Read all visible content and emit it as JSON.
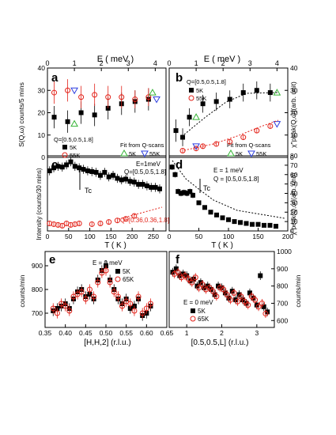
{
  "figure": {
    "top_axis_label": "E ( meV )",
    "panels_count": 6
  },
  "colors": {
    "black": "#000000",
    "red": "#e32219",
    "green": "#35b335",
    "blue": "#2d3fe0",
    "purple": "#6e2da8"
  },
  "chart_data": [
    {
      "id": "a",
      "type": "scatter",
      "letter": "a",
      "xlabel": "",
      "ylabel": "S(Q,ω) counts/5 mins",
      "top_xlabel": "E ( meV )",
      "xlim": [
        0,
        4.4
      ],
      "ylim": [
        0,
        40
      ],
      "xticks": [
        0,
        1,
        2,
        3,
        4
      ],
      "yticks": [
        0,
        10,
        20,
        30,
        40
      ],
      "annotations": [
        "Q=[0.5,0.5,1.8]",
        "Fit from Q-scans"
      ],
      "legend": [
        "5K",
        "55K",
        "5K",
        "55K"
      ],
      "series": [
        {
          "name": "5K",
          "marker": "square",
          "color": "#000000",
          "x": [
            0.25,
            0.75,
            1.25,
            1.75,
            2.25,
            2.75,
            3.25,
            3.75
          ],
          "y": [
            18,
            16,
            20,
            19,
            22,
            24,
            25,
            26
          ],
          "err": [
            5,
            5,
            5,
            5,
            5,
            5,
            5,
            5
          ]
        },
        {
          "name": "55K",
          "marker": "circle-open",
          "color": "#e32219",
          "x": [
            0.25,
            0.75,
            1.25,
            1.75,
            2.25,
            2.75,
            3.25,
            3.75
          ],
          "y": [
            29,
            30,
            27,
            28,
            27,
            27,
            26,
            27
          ],
          "err": [
            5,
            5,
            5,
            5,
            5,
            5,
            4,
            4
          ]
        },
        {
          "name": "5K",
          "marker": "triangle-up-open",
          "color": "#35b335",
          "x": [
            1.0,
            3.9
          ],
          "y": [
            15,
            29
          ],
          "err": [
            0,
            0
          ]
        },
        {
          "name": "55K",
          "marker": "triangle-down-open",
          "color": "#2d3fe0",
          "x": [
            1.0,
            4.05
          ],
          "y": [
            30,
            26
          ],
          "err": [
            0,
            0
          ]
        }
      ]
    },
    {
      "id": "b",
      "type": "scatter",
      "letter": "b",
      "xlabel": "",
      "ylabel": "χ''peak(Q,ω)(arb. unit)",
      "top_xlabel": "E ( meV )",
      "xlim": [
        0,
        4.4
      ],
      "ylim": [
        0,
        40
      ],
      "xticks": [
        0,
        1,
        2,
        3,
        4
      ],
      "yticks": [
        0,
        10,
        20,
        30,
        40
      ],
      "annotations": [
        "Q=[0.5,0.5,1.8]",
        "Fit from Q-scans"
      ],
      "legend": [
        "5K",
        "55K",
        "5K",
        "55K"
      ],
      "series": [
        {
          "name": "5K",
          "marker": "square",
          "color": "#000000",
          "x": [
            0.25,
            0.5,
            0.75,
            1.25,
            1.75,
            2.25,
            2.75,
            3.25,
            3.75
          ],
          "y": [
            12,
            9,
            18,
            24,
            25,
            26,
            29,
            30,
            29
          ],
          "err": [
            5,
            4,
            4,
            4,
            4,
            4,
            4,
            4,
            4
          ]
        },
        {
          "name": "55K",
          "marker": "circle-open",
          "color": "#e32219",
          "x": [
            0.5,
            1.0,
            1.25,
            1.75,
            2.25,
            2.75,
            3.25,
            3.75
          ],
          "y": [
            3,
            4,
            5,
            6,
            7,
            9,
            12,
            14
          ],
          "err": [
            1,
            1,
            1,
            1,
            1,
            1,
            1,
            1
          ]
        },
        {
          "name": "5K",
          "marker": "triangle-up-open",
          "color": "#35b335",
          "x": [
            1.0,
            4.0
          ],
          "y": [
            18,
            29
          ],
          "err": [
            0,
            0
          ]
        },
        {
          "name": "55K",
          "marker": "triangle-down-open",
          "color": "#2d3fe0",
          "x": [
            1.0,
            4.0
          ],
          "y": [
            5,
            15
          ],
          "err": [
            0,
            0
          ]
        }
      ]
    },
    {
      "id": "c",
      "type": "scatter",
      "letter": "c",
      "xlabel": "T ( K )",
      "ylabel": "Intensity (counts/30 mins)",
      "xlim": [
        0,
        280
      ],
      "ylim": [
        0,
        1
      ],
      "xticks": [
        0,
        50,
        100,
        150,
        200,
        250
      ],
      "yticks": [],
      "annotations": [
        "E=1meV",
        "Q=[0.5,0.5,1.8]",
        "Tc",
        "Q=[0.36,0.36,1.8]"
      ],
      "series": [
        {
          "name": "",
          "marker": "square",
          "color": "#000000",
          "x": [
            5,
            15,
            25,
            35,
            45,
            55,
            65,
            75,
            85,
            95,
            105,
            115,
            125,
            135,
            145,
            155,
            165,
            175,
            185,
            195,
            205,
            215,
            225,
            235,
            245,
            255,
            265
          ],
          "y": [
            0.8,
            0.84,
            0.86,
            0.85,
            0.88,
            0.92,
            0.86,
            0.84,
            0.82,
            0.8,
            0.79,
            0.78,
            0.74,
            0.78,
            0.72,
            0.74,
            0.7,
            0.68,
            0.69,
            0.66,
            0.65,
            0.62,
            0.62,
            0.6,
            0.58,
            0.58,
            0.56
          ],
          "err": [
            0.06,
            0.06,
            0.06,
            0.06,
            0.06,
            0.06,
            0.06,
            0.06,
            0.06,
            0.06,
            0.06,
            0.06,
            0.06,
            0.06,
            0.06,
            0.06,
            0.06,
            0.06,
            0.06,
            0.06,
            0.06,
            0.06,
            0.06,
            0.06,
            0.06,
            0.06,
            0.06
          ]
        },
        {
          "name": "Q=[0.36,0.36,1.8]",
          "marker": "circle-open",
          "color": "#e32219",
          "x": [
            5,
            15,
            25,
            35,
            45,
            55,
            65,
            75,
            105,
            125,
            145,
            165,
            185,
            205
          ],
          "y": [
            0.1,
            0.09,
            0.08,
            0.07,
            0.1,
            0.08,
            0.09,
            0.1,
            0.09,
            0.1,
            0.12,
            0.14,
            0.16,
            0.2
          ],
          "err": [
            0.03,
            0.03,
            0.03,
            0.03,
            0.03,
            0.03,
            0.03,
            0.03,
            0.03,
            0.03,
            0.03,
            0.03,
            0.03,
            0.03
          ]
        }
      ]
    },
    {
      "id": "d",
      "type": "scatter",
      "letter": "d",
      "xlabel": "T ( K )",
      "ylabel": "χ''peak(Q,ω)(arb. unit)",
      "xlim": [
        0,
        200
      ],
      "ylim": [
        0,
        80
      ],
      "xticks": [
        0,
        50,
        100,
        150,
        200
      ],
      "yticks": [
        0,
        10,
        20,
        30,
        40,
        50,
        60,
        70,
        80
      ],
      "annotations": [
        "E = 1 meV",
        "Q = [0.5,0.5,1.8]",
        "Tc"
      ],
      "series": [
        {
          "name": "",
          "marker": "square",
          "color": "#000000",
          "x": [
            5,
            10,
            15,
            20,
            25,
            30,
            35,
            40,
            50,
            60,
            70,
            80,
            90,
            100,
            110,
            120,
            130,
            140,
            150,
            160,
            170,
            180
          ],
          "y": [
            68,
            60,
            42,
            40,
            41,
            40,
            42,
            38,
            30,
            25,
            20,
            17,
            14,
            12,
            10,
            9,
            8,
            7,
            7,
            6,
            6,
            5
          ],
          "err": [
            3,
            3,
            3,
            3,
            3,
            3,
            3,
            3,
            2,
            2,
            2,
            2,
            2,
            2,
            2,
            2,
            2,
            2,
            2,
            2,
            2,
            2
          ]
        }
      ]
    },
    {
      "id": "e",
      "type": "scatter",
      "letter": "e",
      "xlabel": "[H,H,2] (r.l.u.)",
      "ylabel": "counts/min",
      "xlim": [
        0.35,
        0.65
      ],
      "ylim": [
        640,
        960
      ],
      "xticks": [
        0.35,
        0.4,
        0.45,
        0.5,
        0.55,
        0.6,
        0.65
      ],
      "yticks": [
        700,
        800,
        900
      ],
      "annotations": [
        "E = 0 meV"
      ],
      "legend": [
        "5K",
        "65K"
      ],
      "series": [
        {
          "name": "5K",
          "marker": "square",
          "color": "#000000",
          "x": [
            0.37,
            0.38,
            0.39,
            0.4,
            0.41,
            0.42,
            0.43,
            0.44,
            0.45,
            0.46,
            0.47,
            0.48,
            0.49,
            0.5,
            0.51,
            0.52,
            0.53,
            0.54,
            0.55,
            0.56,
            0.57,
            0.58,
            0.59,
            0.6,
            0.61
          ],
          "y": [
            710,
            720,
            730,
            740,
            720,
            760,
            790,
            800,
            770,
            780,
            760,
            840,
            880,
            900,
            840,
            800,
            760,
            740,
            760,
            720,
            730,
            760,
            690,
            700,
            730
          ],
          "err": [
            22,
            22,
            22,
            22,
            22,
            22,
            22,
            22,
            22,
            22,
            22,
            22,
            22,
            22,
            22,
            22,
            22,
            22,
            22,
            22,
            22,
            22,
            22,
            22,
            22
          ]
        },
        {
          "name": "65K",
          "marker": "circle-open",
          "color": "#e32219",
          "x": [
            0.37,
            0.38,
            0.39,
            0.4,
            0.41,
            0.42,
            0.43,
            0.44,
            0.45,
            0.46,
            0.47,
            0.48,
            0.49,
            0.5,
            0.51,
            0.52,
            0.53,
            0.54,
            0.55,
            0.56,
            0.57,
            0.58,
            0.59,
            0.6,
            0.61
          ],
          "y": [
            720,
            700,
            740,
            730,
            710,
            770,
            780,
            790,
            760,
            800,
            770,
            830,
            870,
            880,
            830,
            790,
            770,
            730,
            750,
            740,
            710,
            770,
            700,
            720,
            740
          ],
          "err": [
            22,
            22,
            22,
            22,
            22,
            22,
            22,
            22,
            22,
            22,
            22,
            22,
            22,
            22,
            22,
            22,
            22,
            22,
            22,
            22,
            22,
            22,
            22,
            22,
            22
          ]
        }
      ]
    },
    {
      "id": "f",
      "type": "scatter",
      "letter": "f",
      "xlabel": "[0.5,0.5,L] (r.l.u.)",
      "ylabel": "counts/min",
      "xlim": [
        0.5,
        3.5
      ],
      "ylim": [
        560,
        1000
      ],
      "xticks": [
        1,
        2,
        3
      ],
      "yticks": [
        600,
        700,
        800,
        900,
        1000
      ],
      "annotations": [
        "E = 0 meV"
      ],
      "legend": [
        "5K",
        "65K"
      ],
      "series": [
        {
          "name": "5K",
          "marker": "square",
          "color": "#000000",
          "x": [
            0.6,
            0.7,
            0.8,
            0.9,
            1.0,
            1.1,
            1.2,
            1.3,
            1.4,
            1.5,
            1.6,
            1.7,
            1.8,
            1.9,
            2.0,
            2.1,
            2.2,
            2.3,
            2.4,
            2.5,
            2.6,
            2.7,
            2.8,
            2.9,
            3.0,
            3.1,
            3.2,
            3.3
          ],
          "y": [
            880,
            900,
            860,
            870,
            860,
            830,
            840,
            800,
            820,
            790,
            800,
            780,
            750,
            800,
            790,
            760,
            730,
            770,
            720,
            750,
            720,
            700,
            760,
            730,
            690,
            860,
            680,
            650
          ],
          "err": [
            25,
            25,
            25,
            25,
            25,
            25,
            25,
            25,
            25,
            25,
            25,
            25,
            25,
            25,
            25,
            25,
            25,
            25,
            25,
            25,
            25,
            25,
            25,
            25,
            25,
            25,
            25,
            25
          ]
        },
        {
          "name": "65K",
          "marker": "circle-open",
          "color": "#e32219",
          "x": [
            0.65,
            0.75,
            0.85,
            0.95,
            1.05,
            1.15,
            1.25,
            1.35,
            1.45,
            1.55,
            1.65,
            1.75,
            1.85,
            1.95,
            2.05,
            2.15,
            2.25,
            2.35,
            2.45,
            2.55,
            2.65,
            2.75,
            2.85,
            2.95,
            3.05,
            3.15,
            3.25
          ],
          "y": [
            870,
            880,
            850,
            860,
            840,
            820,
            850,
            790,
            810,
            780,
            790,
            770,
            740,
            790,
            780,
            750,
            720,
            760,
            710,
            740,
            710,
            690,
            740,
            720,
            680,
            700,
            640
          ],
          "err": [
            25,
            25,
            25,
            25,
            25,
            25,
            25,
            25,
            25,
            25,
            25,
            25,
            25,
            25,
            25,
            25,
            25,
            25,
            25,
            25,
            25,
            25,
            25,
            25,
            25,
            25,
            25
          ]
        }
      ]
    }
  ]
}
